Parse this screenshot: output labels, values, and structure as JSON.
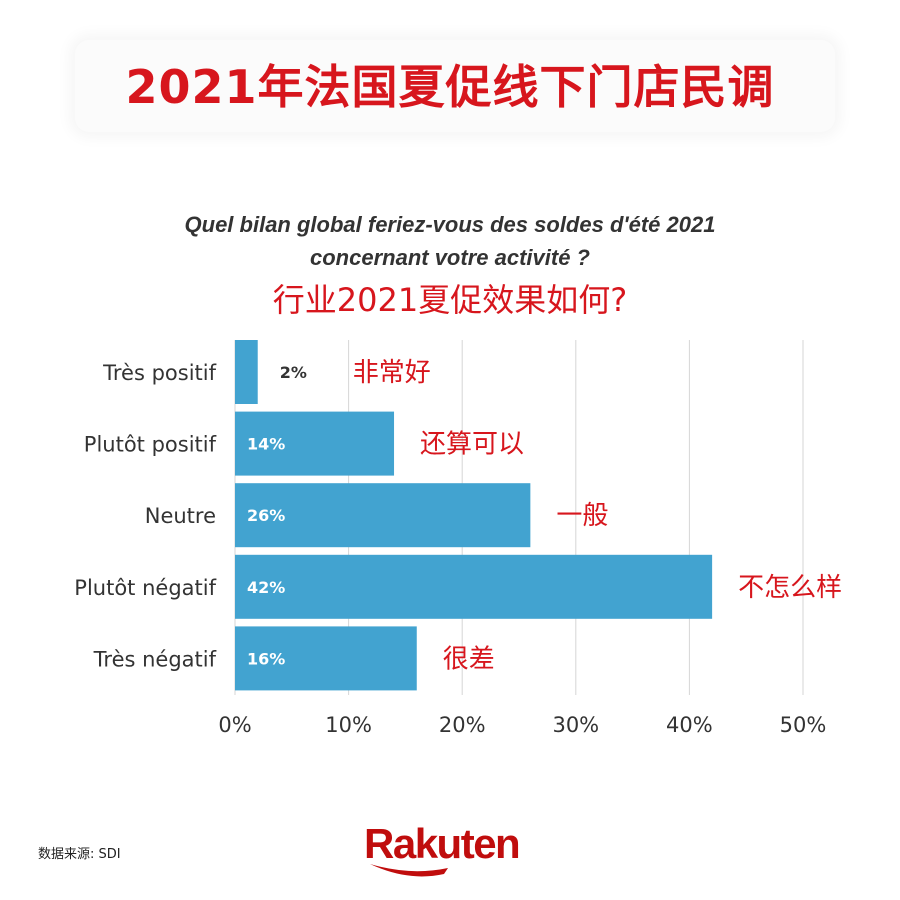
{
  "header": {
    "title": "2021年法国夏促线下门店民调"
  },
  "chart_title": {
    "fr_line1": "Quel bilan global feriez-vous des soldes d'été 2021",
    "fr_line2": "concernant votre activité ?",
    "cn": "行业2021夏促效果如何?"
  },
  "colors": {
    "accent_red": "#d7161d",
    "bar": "#42a3d0",
    "text": "#333333",
    "grid": "#d6d6d6"
  },
  "chart_data": {
    "type": "bar",
    "orientation": "horizontal",
    "categories": [
      "Très positif",
      "Plutôt positif",
      "Neutre",
      "Plutôt négatif",
      "Très négatif"
    ],
    "values": [
      2,
      14,
      26,
      42,
      16
    ],
    "value_labels": [
      "2%",
      "14%",
      "26%",
      "42%",
      "16%"
    ],
    "annotations": [
      "非常好",
      "还算可以",
      "一般",
      "不怎么样",
      "很差"
    ],
    "x_ticks": [
      "0%",
      "10%",
      "20%",
      "30%",
      "40%",
      "50%"
    ],
    "xlim": [
      0,
      50
    ],
    "grid": true
  },
  "source": "数据来源: SDI",
  "logo": {
    "text": "Rakuten"
  }
}
